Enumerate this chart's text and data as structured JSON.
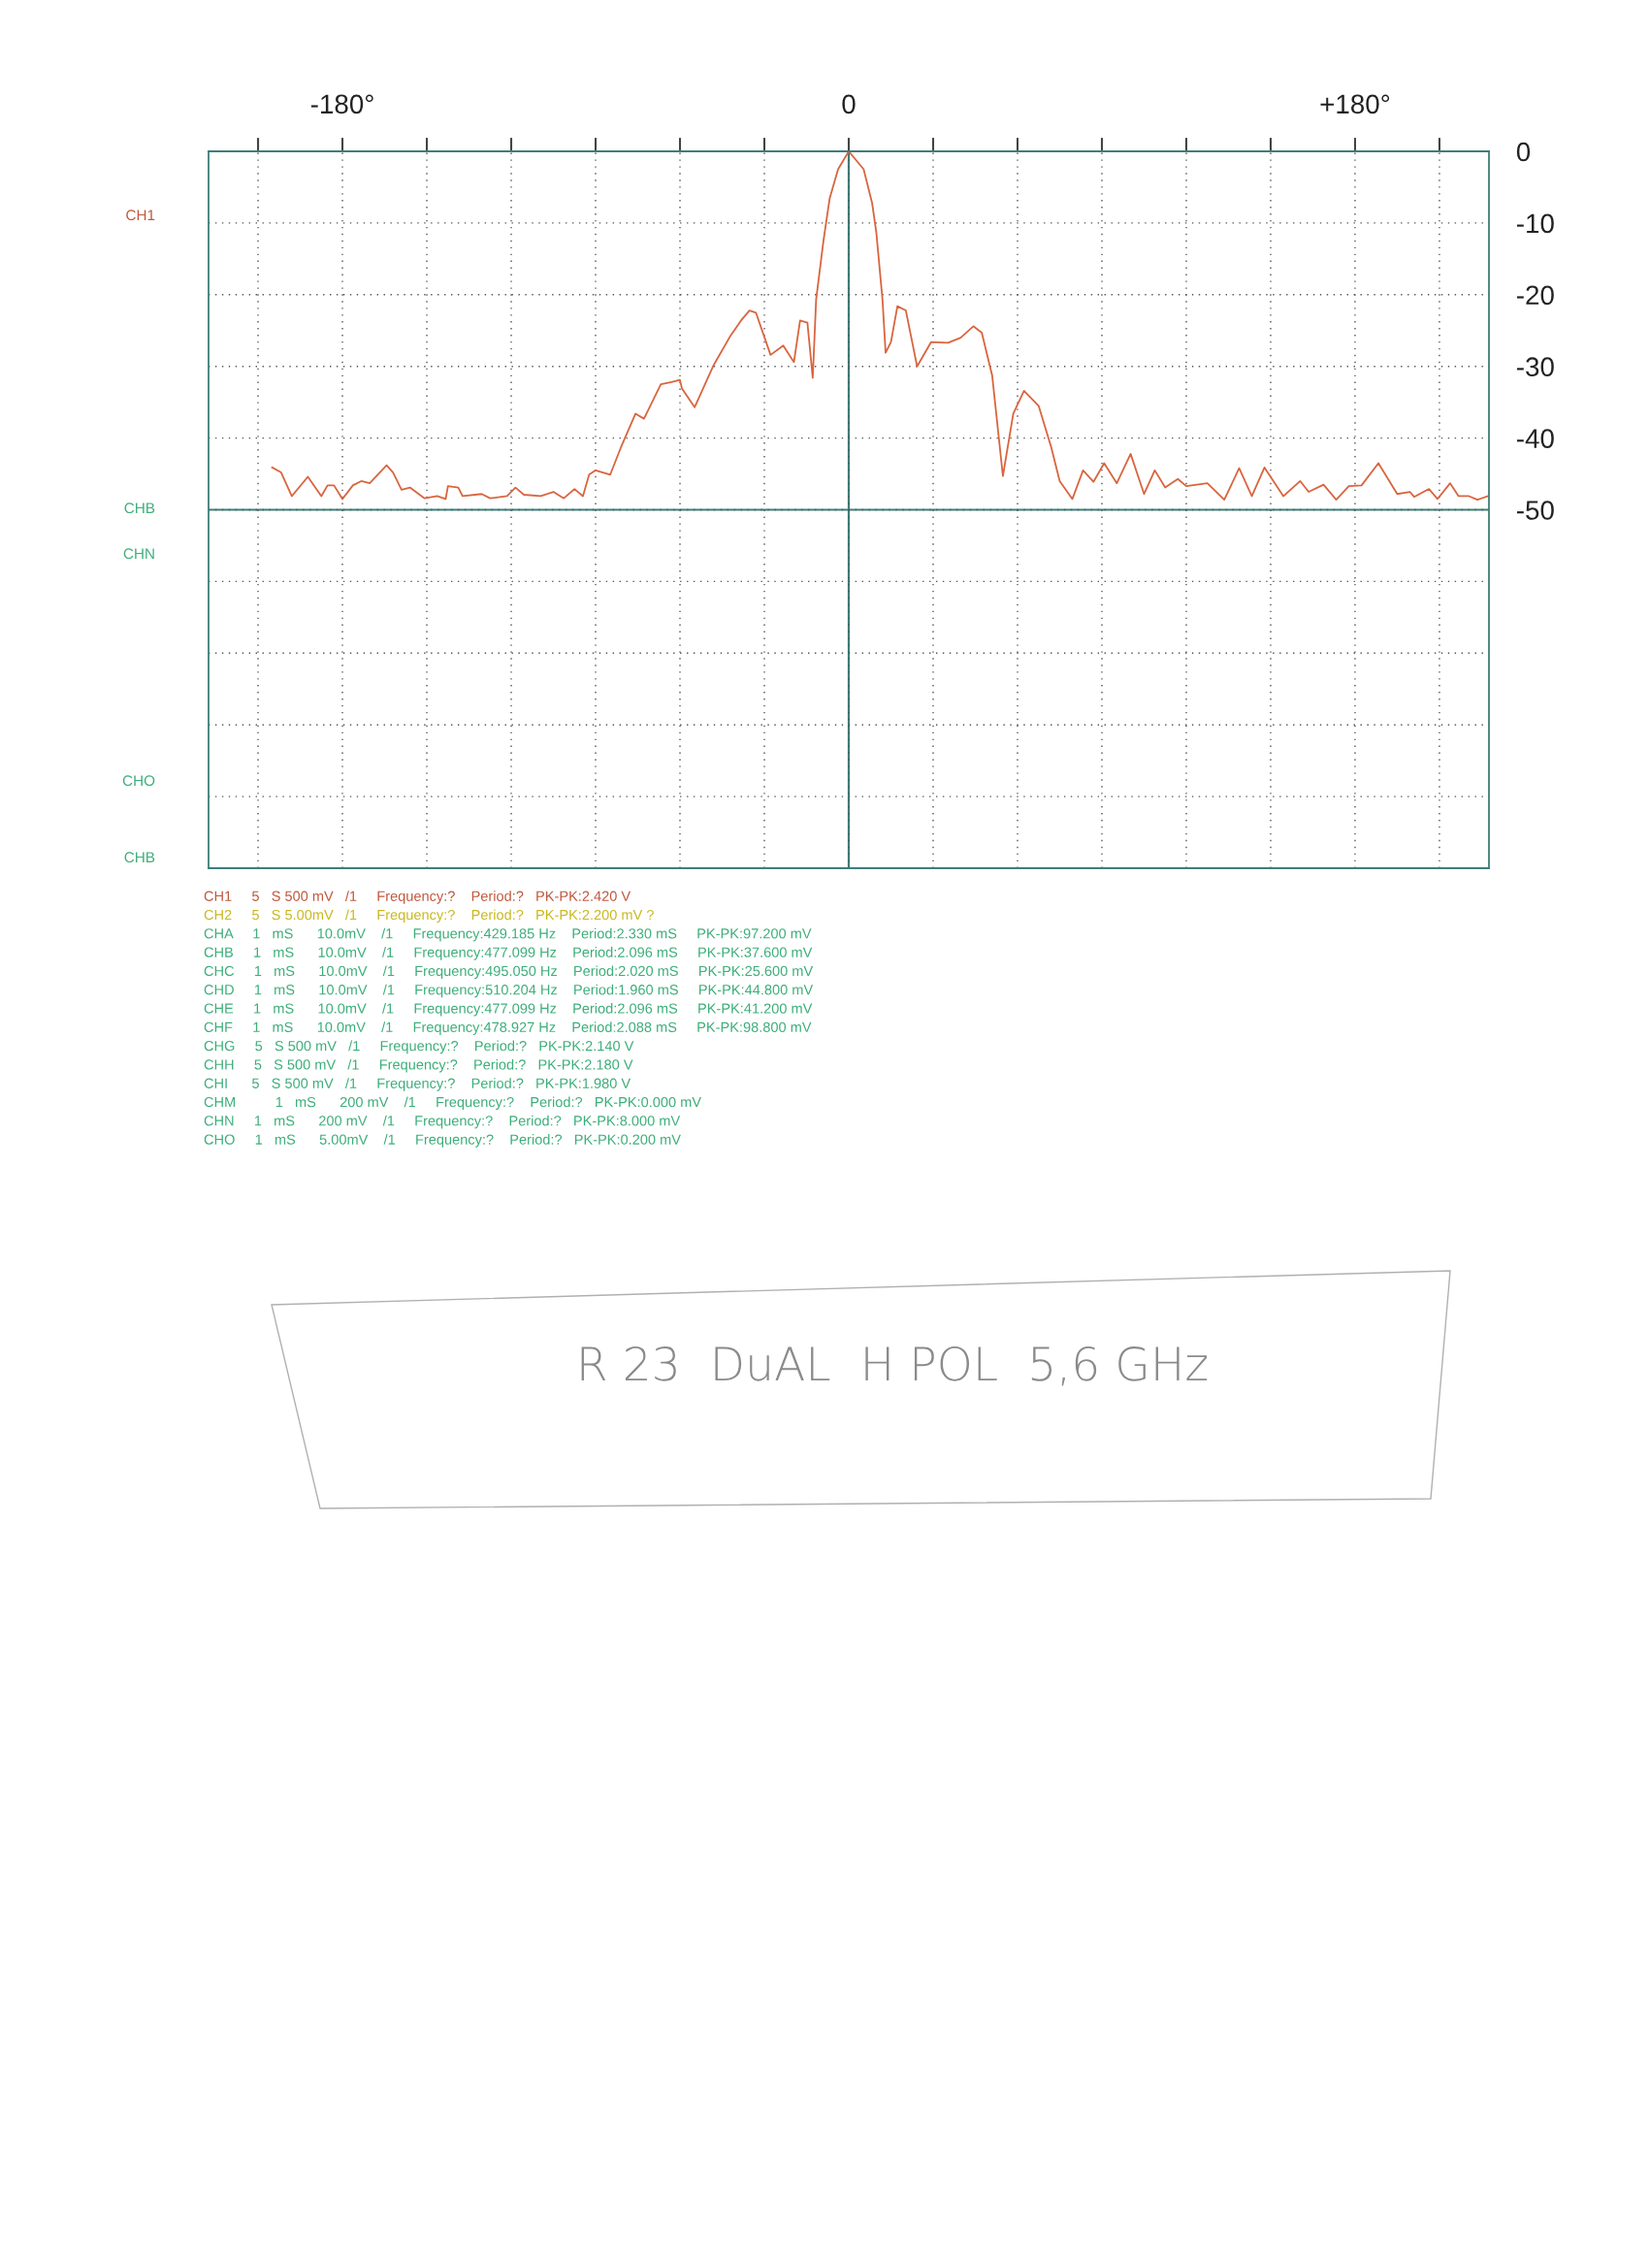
{
  "chart_data": {
    "type": "line",
    "x": [
      -205,
      -201.8,
      -198,
      -192.3,
      -187.5,
      -185.3,
      -183,
      -180,
      -176.3,
      -173.3,
      -170.3,
      -164.3,
      -162,
      -159,
      -156,
      -150.8,
      -146.3,
      -143.3,
      -142.5,
      -138.8,
      -137.3,
      -130.5,
      -127.5,
      -121.5,
      -118.5,
      -115.5,
      -109.5,
      -105,
      -101.3,
      -97.5,
      -94.5,
      -92.3,
      -90,
      -84.8,
      -81,
      -75.8,
      -72.8,
      -66.8,
      -63,
      -60,
      -59.3,
      -54.8,
      -48,
      -42,
      -38.3,
      -35.3,
      -33,
      -27.8,
      -23.3,
      -19.5,
      -17.3,
      -14.7,
      -12.8,
      -11.6,
      -9,
      -6.8,
      -3.8,
      0,
      5.3,
      8.3,
      9.8,
      12,
      13.1,
      15,
      17.3,
      20.3,
      24.3,
      29.3,
      35.3,
      39.8,
      44.3,
      47.3,
      51,
      54.8,
      58.5,
      62.3,
      67.5,
      72,
      75,
      79.5,
      83.3,
      87,
      90.8,
      95.3,
      100.2,
      105,
      108.8,
      112.5,
      117,
      120,
      127.5,
      133.5,
      138.8,
      143.3,
      147.8,
      154.5,
      160.5,
      163.5,
      168.8,
      173.3,
      177.8,
      182.3,
      188.3,
      195,
      199.5,
      201,
      206.3,
      209.3,
      213.8,
      216.8,
      220.5,
      223.5,
      227.3
    ],
    "series": [
      {
        "color": "#d9653f",
        "values": [
          -44.1,
          -44.8,
          -48.1,
          -45.4,
          -48.1,
          -46.6,
          -46.6,
          -48.5,
          -46.6,
          -46,
          -46.3,
          -43.8,
          -44.8,
          -47.2,
          -46.9,
          -48.4,
          -48.1,
          -48.5,
          -46.7,
          -46.9,
          -48.1,
          -47.8,
          -48.4,
          -48.1,
          -46.9,
          -47.9,
          -48.1,
          -47.5,
          -48.4,
          -47.1,
          -48.1,
          -45.1,
          -44.5,
          -45.1,
          -41.3,
          -36.6,
          -37.3,
          -32.5,
          -32.2,
          -31.9,
          -33.1,
          -35.7,
          -29.8,
          -25.7,
          -23.6,
          -22.2,
          -22.5,
          -28.4,
          -27.1,
          -29.4,
          -23.6,
          -23.9,
          -31.6,
          -20.7,
          -12.5,
          -6.6,
          -2.5,
          0,
          -2.5,
          -7.2,
          -11.3,
          -20.7,
          -28.1,
          -26.6,
          -21.6,
          -22.2,
          -30,
          -26.6,
          -26.7,
          -26,
          -24.4,
          -25.3,
          -31.3,
          -45.3,
          -36.6,
          -33.4,
          -35.5,
          -41.3,
          -46,
          -48.5,
          -44.5,
          -46.1,
          -43.5,
          -46.3,
          -42.2,
          -47.8,
          -44.5,
          -46.9,
          -45.7,
          -46.7,
          -46.3,
          -48.6,
          -44.2,
          -48.1,
          -44.1,
          -48.1,
          -46,
          -47.5,
          -46.5,
          -48.6,
          -46.7,
          -46.6,
          -43.5,
          -47.8,
          -47.5,
          -48.2,
          -47.1,
          -48.5,
          -46.3,
          -48.1,
          -48.1,
          -48.6,
          -48.1
        ]
      }
    ],
    "xlim": [
      -227.6,
      227.6
    ],
    "xticks": [
      {
        "value": -210,
        "label": null
      },
      {
        "value": -180,
        "label": "-180°"
      },
      {
        "value": -150,
        "label": null
      },
      {
        "value": -120,
        "label": null
      },
      {
        "value": -90,
        "label": null
      },
      {
        "value": -60,
        "label": null
      },
      {
        "value": -30,
        "label": null
      },
      0,
      {
        "value": 30,
        "label": null
      },
      {
        "value": 60,
        "label": null
      },
      {
        "value": 90,
        "label": null
      },
      {
        "value": 120,
        "label": null
      },
      {
        "value": 150,
        "label": null
      },
      {
        "value": 180,
        "label": "+180°"
      },
      {
        "value": 210,
        "label": null
      }
    ],
    "ylim": [
      -100,
      0
    ],
    "yticks": [
      0,
      -10,
      -20,
      -30,
      -40,
      -50,
      {
        "value": -60,
        "label": null
      },
      {
        "value": -70,
        "label": null
      },
      {
        "value": -80,
        "label": null
      },
      {
        "value": -90,
        "label": null
      },
      {
        "value": -100,
        "label": null
      }
    ],
    "grid": true,
    "marker": "none",
    "line_style": "solid",
    "annotations": [
      "CH1",
      "CHB",
      "CHN",
      "CHO",
      "CHB",
      "CH1     5   S 500 mV   /1     Frequency:?    Period:?   PK-PK:2.420 V",
      "CH2     5   S 5.00mV   /1     Frequency:?    Period:?   PK-PK:2.200 mV ?",
      "CHA     1   mS      10.0mV    /1     Frequency:429.185 Hz    Period:2.330 mS     PK-PK:97.200 mV",
      "CHB     1   mS      10.0mV    /1     Frequency:477.099 Hz    Period:2.096 mS     PK-PK:37.600 mV",
      "CHC     1   mS      10.0mV    /1     Frequency:495.050 Hz    Period:2.020 mS     PK-PK:25.600 mV",
      "CHD     1   mS      10.0mV    /1     Frequency:510.204 Hz    Period:1.960 mS     PK-PK:44.800 mV",
      "CHE     1   mS      10.0mV    /1     Frequency:477.099 Hz    Period:2.096 mS     PK-PK:41.200 mV",
      "CHF     1   mS      10.0mV    /1     Frequency:478.927 Hz    Period:2.088 mS     PK-PK:98.800 mV",
      "CHG     5   S 500 mV   /1     Frequency:?    Period:?   PK-PK:2.140 V",
      "CHH     5   S 500 mV   /1     Frequency:?    Period:?   PK-PK:2.180 V",
      "CHI      5   S 500 mV   /1     Frequency:?    Period:?   PK-PK:1.980 V",
      "CHM          1   mS      200 mV    /1     Frequency:?    Period:?   PK-PK:0.000 mV",
      "CHN     1   mS      200 mV    /1     Frequency:?    Period:?   PK-PK:8.000 mV",
      "CHO     1   mS      5.00mV    /1     Frequency:?    Period:?   PK-PK:0.200 mV",
      "R 23  DuAL  H POL  5,6 GHz"
    ]
  }
}
